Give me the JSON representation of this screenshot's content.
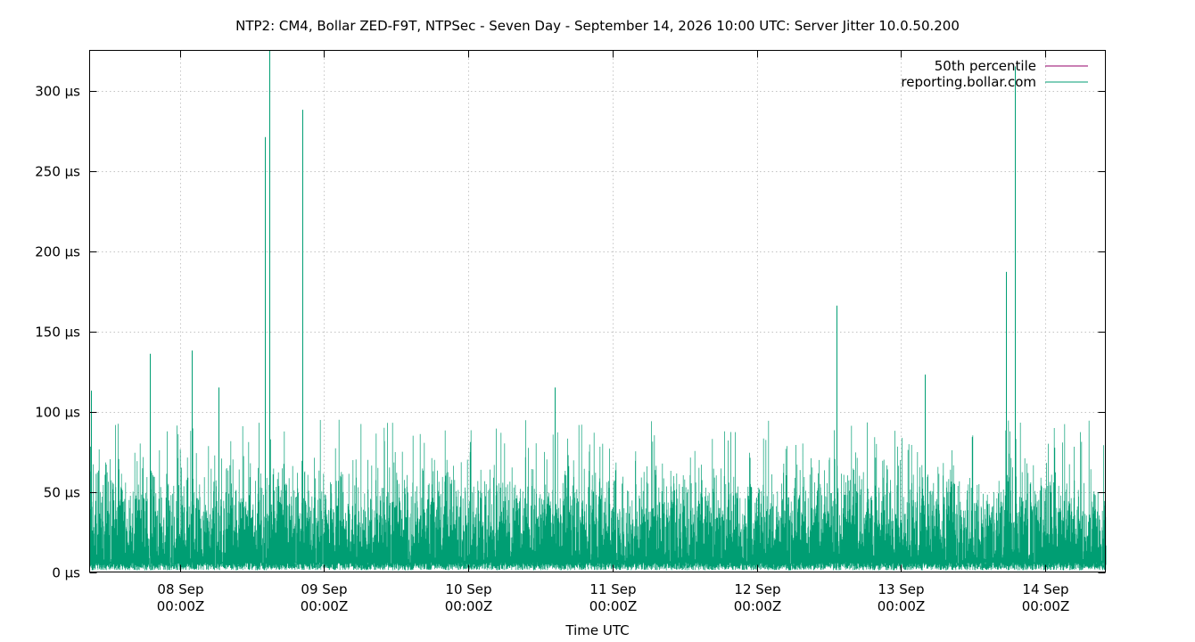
{
  "chart_data": {
    "type": "line",
    "title": "NTP2: CM4, Bollar ZED-F9T, NTPSec - Seven Day - September 14, 2026 10:00 UTC: Server Jitter 10.0.50.200",
    "xlabel": "Time UTC",
    "ylabel": "",
    "x_range": [
      "2026-09-07T09:00Z",
      "2026-09-14T10:00Z"
    ],
    "ylim": [
      0,
      325
    ],
    "y_unit": "µs",
    "y_ticks": [
      {
        "value": 0,
        "label": "0 µs"
      },
      {
        "value": 50,
        "label": "50 µs"
      },
      {
        "value": 100,
        "label": "100 µs"
      },
      {
        "value": 150,
        "label": "150 µs"
      },
      {
        "value": 200,
        "label": "200 µs"
      },
      {
        "value": 250,
        "label": "250 µs"
      },
      {
        "value": 300,
        "label": "300 µs"
      }
    ],
    "x_ticks": [
      {
        "value": "2026-09-08T00:00Z",
        "line1": "08 Sep",
        "line2": "00:00Z"
      },
      {
        "value": "2026-09-09T00:00Z",
        "line1": "09 Sep",
        "line2": "00:00Z"
      },
      {
        "value": "2026-09-10T00:00Z",
        "line1": "10 Sep",
        "line2": "00:00Z"
      },
      {
        "value": "2026-09-11T00:00Z",
        "line1": "11 Sep",
        "line2": "00:00Z"
      },
      {
        "value": "2026-09-12T00:00Z",
        "line1": "12 Sep",
        "line2": "00:00Z"
      },
      {
        "value": "2026-09-13T00:00Z",
        "line1": "13 Sep",
        "line2": "00:00Z"
      },
      {
        "value": "2026-09-14T00:00Z",
        "line1": "14 Sep",
        "line2": "00:00Z"
      }
    ],
    "grid": true,
    "legend_position": "top-right",
    "series": [
      {
        "name": "50th percentile",
        "color": "#94006a",
        "points": []
      },
      {
        "name": "reporting.bollar.com",
        "color": "#009e73",
        "typical_range": [
          3,
          60
        ],
        "spikes": [
          {
            "x": "2026-09-07T09:10Z",
            "y": 113
          },
          {
            "x": "2026-09-07T19:00Z",
            "y": 136
          },
          {
            "x": "2026-09-08T02:00Z",
            "y": 138
          },
          {
            "x": "2026-09-08T06:30Z",
            "y": 115
          },
          {
            "x": "2026-09-08T14:10Z",
            "y": 271
          },
          {
            "x": "2026-09-08T14:50Z",
            "y": 325
          },
          {
            "x": "2026-09-08T20:20Z",
            "y": 288
          },
          {
            "x": "2026-09-10T14:20Z",
            "y": 115
          },
          {
            "x": "2026-09-12T13:20Z",
            "y": 166
          },
          {
            "x": "2026-09-13T04:00Z",
            "y": 123
          },
          {
            "x": "2026-09-13T17:30Z",
            "y": 187
          },
          {
            "x": "2026-09-13T19:00Z",
            "y": 315
          }
        ]
      }
    ]
  }
}
